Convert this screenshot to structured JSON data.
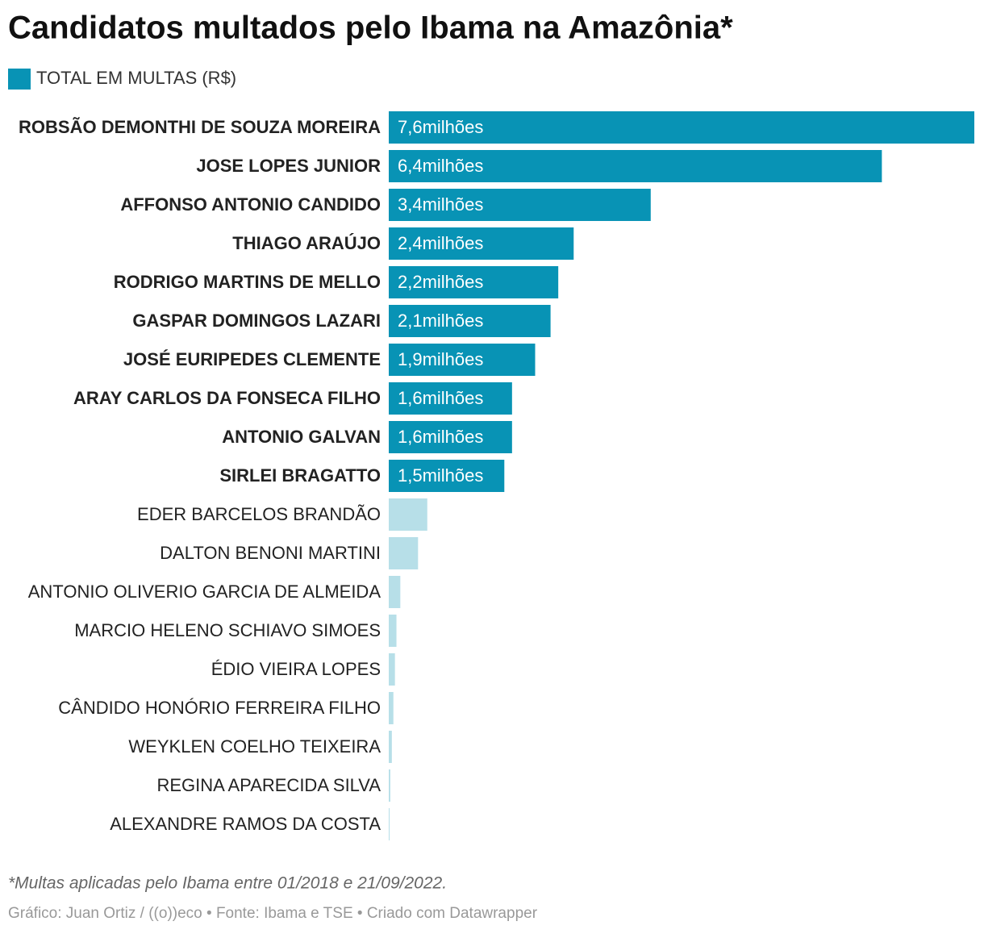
{
  "chart_data": {
    "type": "bar",
    "title": "Candidatos multados pelo Ibama na Amazônia*",
    "categories": [
      "ROBSÃO DEMONTHI DE SOUZA MOREIRA",
      "JOSE LOPES JUNIOR",
      "AFFONSO ANTONIO CANDIDO",
      "THIAGO ARAÚJO",
      "RODRIGO MARTINS DE MELLO",
      "GASPAR DOMINGOS LAZARI",
      "JOSÉ EURIPEDES CLEMENTE",
      "ARAY CARLOS DA FONSECA FILHO",
      "ANTONIO GALVAN",
      "SIRLEI BRAGATTO",
      "EDER BARCELOS BRANDÃO",
      "DALTON BENONI MARTINI",
      "ANTONIO OLIVERIO GARCIA DE ALMEIDA",
      "MARCIO HELENO SCHIAVO SIMOES",
      "ÉDIO VIEIRA LOPES",
      "CÂNDIDO HONÓRIO FERREIRA FILHO",
      "WEYKLEN COELHO TEIXEIRA",
      "REGINA APARECIDA SILVA",
      "ALEXANDRE RAMOS DA COSTA"
    ],
    "series": [
      {
        "name": "TOTAL EM MULTAS (R$)",
        "color": "#0893b5",
        "values": [
          7.6,
          6.4,
          3.4,
          2.4,
          2.2,
          2.1,
          1.9,
          1.6,
          1.6,
          1.5,
          0.5,
          0.38,
          0.15,
          0.1,
          0.08,
          0.06,
          0.04,
          0.02,
          0.01
        ],
        "value_labels": [
          "7,6milhões",
          "6,4milhões",
          "3,4milhões",
          "2,4milhões",
          "2,2milhões",
          "2,1milhões",
          "1,9milhões",
          "1,6milhões",
          "1,6milhões",
          "1,5milhões",
          null,
          null,
          null,
          null,
          null,
          null,
          null,
          null,
          null
        ],
        "colors": [
          "#0893b5",
          "#0893b5",
          "#0893b5",
          "#0893b5",
          "#0893b5",
          "#0893b5",
          "#0893b5",
          "#0893b5",
          "#0893b5",
          "#0893b5",
          "#b7dfe8",
          "#b7dfe8",
          "#b7dfe8",
          "#b7dfe8",
          "#b7dfe8",
          "#b7dfe8",
          "#b7dfe8",
          "#b7dfe8",
          "#b7dfe8"
        ]
      }
    ],
    "notes": "*Multas aplicadas pelo Ibama entre 01/2018 e 21/09/2022.",
    "source": "Gráfico: Juan Ortiz / ((o))eco • Fonte: Ibama e TSE • Criado com Datawrapper"
  }
}
